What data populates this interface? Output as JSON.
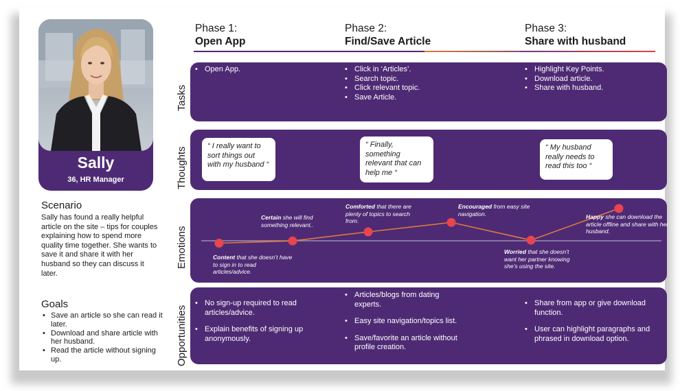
{
  "persona": {
    "name": "Sally",
    "role": "36, HR Manager",
    "photo_icon": "persona-photo"
  },
  "scenario": {
    "heading": "Scenario",
    "text": "Sally has found a really helpful article on the site – tips for couples explaining how to spend more quality time together. She wants to save it and share it with her husband so they can discuss it later."
  },
  "goals": {
    "heading": "Goals",
    "items": [
      "Save an article so she can read it later.",
      "Download and share article with her husband.",
      "Read the article without signing up."
    ]
  },
  "phases": [
    {
      "number": "Phase 1:",
      "name": "Open App",
      "color": "#4e2a74"
    },
    {
      "number": "Phase 2:",
      "name": "Find/Save Article",
      "color": "#e07a3a"
    },
    {
      "number": "Phase 3:",
      "name": "Share with husband",
      "color": "#e0404a"
    }
  ],
  "rows": {
    "tasks": "Tasks",
    "thoughts": "Thoughts",
    "emotions": "Emotions",
    "opportunities": "Opportunities"
  },
  "tasks": {
    "phase1": [
      "Open App."
    ],
    "phase2": [
      "Click in ‘Articles’.",
      "Search topic.",
      "Click relevant topic.",
      "Save Article."
    ],
    "phase3": [
      "Highlight Key Points.",
      "Download article.",
      "Share with husband."
    ]
  },
  "thoughts": {
    "phase1": "“ I really want to sort things out with my husband “",
    "phase2": "“ Finally, something relevant that can help me “",
    "phase3": "“ My husband really needs to read this too “"
  },
  "emotions": {
    "points": [
      {
        "emotion": "Content",
        "text": "that she doesn’t have to sign in to read articles/advice.",
        "level": 0.3
      },
      {
        "emotion": "Certain",
        "text": "she will find something relevant..",
        "level": 0.36
      },
      {
        "emotion": "Comforted",
        "text": " that there are plenty of topics to search from.",
        "level": 0.6
      },
      {
        "emotion": "Encouraged",
        "text": " from easy site navigation.",
        "level": 0.85
      },
      {
        "emotion": "Worried",
        "text": " that she doesn’t want her partner knowing she’s using the site.",
        "level": 0.38
      },
      {
        "emotion": "Happy",
        "text": " she can download the article offline and share with her husband.",
        "level": 1.22
      }
    ],
    "line_color": "#e07a3a",
    "dot_color": "#e8454f",
    "baseline_color": "#9c8fb3"
  },
  "opportunities": {
    "phase1": [
      "No sign-up required to read articles/advice.",
      "Explain benefits of signing up anonymously."
    ],
    "phase2": [
      "Articles/blogs from dating experts.",
      "Easy site navigation/topics list.",
      "Save/favorite an article without profile creation."
    ],
    "phase3": [
      "Share from app or give download function.",
      "User can highlight paragraphs and phrased in download option."
    ]
  },
  "colors": {
    "panel": "#4e2a74",
    "accent_orange": "#e07a3a",
    "accent_red": "#e0404a"
  }
}
